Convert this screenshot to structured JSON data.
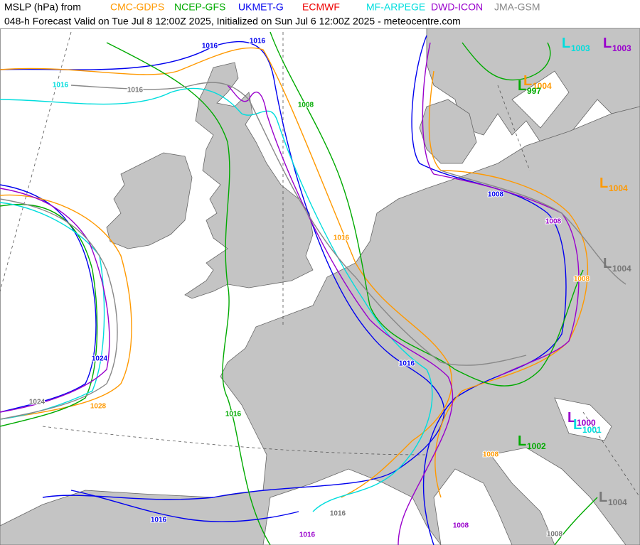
{
  "header": {
    "prefix": "MSLP (hPa) from",
    "models": [
      {
        "name": "CMC-GDPS",
        "color": "#ff9900"
      },
      {
        "name": "NCEP-GFS",
        "color": "#00aa00"
      },
      {
        "name": "UKMET-G",
        "color": "#0000ee"
      },
      {
        "name": "ECMWF",
        "color": "#ee0000"
      },
      {
        "name": "MF-ARPEGE",
        "color": "#00dddd"
      },
      {
        "name": "DWD-ICON",
        "color": "#9900cc"
      },
      {
        "name": "JMA-GSM",
        "color": "#888888"
      }
    ],
    "subtitle": "048-h Forecast Valid on Tue Jul 8 12:00Z 2025, Initialized on Sun Jul 6 12:00Z 2025 - meteocentre.com"
  },
  "lows": [
    {
      "letter": "L",
      "value": 1003,
      "color": "#00dddd"
    },
    {
      "letter": "L",
      "value": 1003,
      "color": "#9900cc"
    },
    {
      "letter": "L",
      "value": 1004,
      "color": "#ff9900"
    },
    {
      "letter": "L",
      "value": 997,
      "color": "#00aa00"
    },
    {
      "letter": "L",
      "value": 1004,
      "color": "#ff9900"
    },
    {
      "letter": "L",
      "value": 1004,
      "color": "#777777"
    },
    {
      "letter": "L",
      "value": 1000,
      "color": "#9900cc"
    },
    {
      "letter": "L",
      "value": 1001,
      "color": "#00dddd"
    },
    {
      "letter": "L",
      "value": 1002,
      "color": "#00aa00"
    },
    {
      "letter": "L",
      "value": 1004,
      "color": "#777777"
    }
  ],
  "contour_labels": [
    {
      "text": "1016",
      "color": "#0000ee"
    },
    {
      "text": "1016",
      "color": "#0000ee"
    },
    {
      "text": "1016",
      "color": "#00dddd"
    },
    {
      "text": "1016",
      "color": "#777777"
    },
    {
      "text": "1008",
      "color": "#00aa00"
    },
    {
      "text": "1024",
      "color": "#0000ee"
    },
    {
      "text": "1028",
      "color": "#ff9900"
    },
    {
      "text": "1024",
      "color": "#777777"
    },
    {
      "text": "1016",
      "color": "#ff9900"
    },
    {
      "text": "1016",
      "color": "#0000ee"
    },
    {
      "text": "1008",
      "color": "#0000ee"
    },
    {
      "text": "1008",
      "color": "#9900cc"
    },
    {
      "text": "1008",
      "color": "#ff9900"
    },
    {
      "text": "1016",
      "color": "#00aa00"
    },
    {
      "text": "1016",
      "color": "#0000ee"
    },
    {
      "text": "1016",
      "color": "#777777"
    },
    {
      "text": "1008",
      "color": "#ff9900"
    },
    {
      "text": "1008",
      "color": "#777777"
    },
    {
      "text": "1016",
      "color": "#9900cc"
    },
    {
      "text": "1008",
      "color": "#9900cc"
    }
  ]
}
